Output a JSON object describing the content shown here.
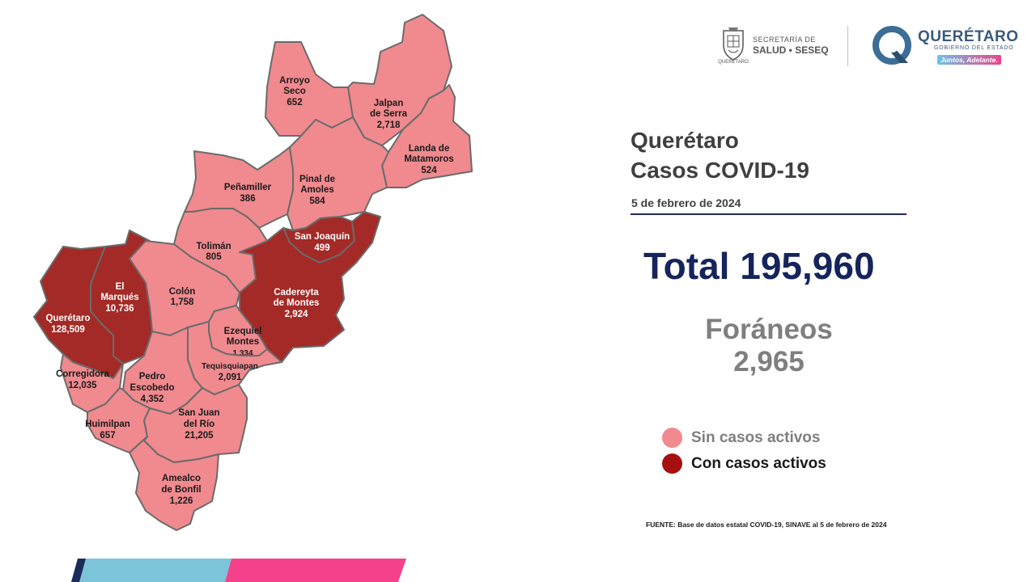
{
  "map": {
    "municipalities": [
      {
        "id": "arroyo-seco",
        "name_lines": [
          "Arroyo",
          "Seco"
        ],
        "cases": "652",
        "status": "sin_casos_activos"
      },
      {
        "id": "jalpan-de-serra",
        "name_lines": [
          "Jalpan",
          "de Serra"
        ],
        "cases": "2,718",
        "status": "sin_casos_activos"
      },
      {
        "id": "landa-de-matamoros",
        "name_lines": [
          "Landa de",
          "Matamoros"
        ],
        "cases": "524",
        "status": "sin_casos_activos"
      },
      {
        "id": "pinal-de-amoles",
        "name_lines": [
          "Pinal de",
          "Amoles"
        ],
        "cases": "584",
        "status": "sin_casos_activos"
      },
      {
        "id": "penamiller",
        "name_lines": [
          "Peñamiller"
        ],
        "cases": "386",
        "status": "sin_casos_activos"
      },
      {
        "id": "san-joaquin",
        "name_lines": [
          "San Joaquín"
        ],
        "cases": "499",
        "status": "con_casos_activos"
      },
      {
        "id": "toliman",
        "name_lines": [
          "Tolimán"
        ],
        "cases": "805",
        "status": "sin_casos_activos"
      },
      {
        "id": "cadereyta-de-montes",
        "name_lines": [
          "Cadereyta",
          "de Montes"
        ],
        "cases": "2,924",
        "status": "con_casos_activos"
      },
      {
        "id": "el-marques",
        "name_lines": [
          "El",
          "Marqués"
        ],
        "cases": "10,736",
        "status": "con_casos_activos"
      },
      {
        "id": "queretaro",
        "name_lines": [
          "Querétaro"
        ],
        "cases": "128,509",
        "status": "con_casos_activos"
      },
      {
        "id": "colon",
        "name_lines": [
          "Colón"
        ],
        "cases": "1,758",
        "status": "sin_casos_activos"
      },
      {
        "id": "ezequiel-montes",
        "name_lines": [
          "Ezequiel",
          "Montes"
        ],
        "cases": "1,334",
        "status": "sin_casos_activos"
      },
      {
        "id": "corregidora",
        "name_lines": [
          "Corregidora"
        ],
        "cases": "12,035",
        "status": "sin_casos_activos"
      },
      {
        "id": "pedro-escobedo",
        "name_lines": [
          "Pedro",
          "Escobedo"
        ],
        "cases": "4,352",
        "status": "sin_casos_activos"
      },
      {
        "id": "tequisquiapan",
        "name_lines": [
          "Tequisquiapan"
        ],
        "cases": "2,091",
        "status": "sin_casos_activos"
      },
      {
        "id": "huimilpan",
        "name_lines": [
          "Huimilpan"
        ],
        "cases": "657",
        "status": "sin_casos_activos"
      },
      {
        "id": "san-juan-del-rio",
        "name_lines": [
          "San Juan",
          "del Río"
        ],
        "cases": "21,205",
        "status": "sin_casos_activos"
      },
      {
        "id": "amealco-de-bonfil",
        "name_lines": [
          "Amealco",
          "de Bonfil"
        ],
        "cases": "1,226",
        "status": "sin_casos_activos"
      }
    ]
  },
  "header": {
    "seseq_line1": "SECRETARÍA DE",
    "seseq_line2": "SALUD • SESEQ",
    "seal_caption": "QUERÉTARO",
    "qro_name": "QUERÉTARO",
    "qro_sub": "GOBIERNO DEL ESTADO",
    "qro_tag": "Juntos, Adelante."
  },
  "title_lines": [
    "Querétaro",
    "Casos COVID-19"
  ],
  "date": "5 de febrero de 2024",
  "total_label": "Total 195,960",
  "foraneos_label": "Foráneos",
  "foraneos_value": "2,965",
  "legend": [
    {
      "label": "Sin casos activos",
      "color": "#f08a8f",
      "text_color": "#7f7f7f"
    },
    {
      "label": "Con casos activos",
      "color": "#a50f0f",
      "text_color": "#1a1a1a"
    }
  ],
  "source_note": "FUENTE: Base de datos estatal  COVID-19,  SINAVE  al 5 de febrero de 2024",
  "colors": {
    "sin_casos_activos": "#f08a8f",
    "con_casos_activos": "#a32a26",
    "title": "#3f3f3f",
    "total": "#16245c",
    "foraneos": "#7f7f7f",
    "bar_blue": "#7cc4da",
    "bar_pink": "#f5418c",
    "bar_navy": "#1c2c5a"
  }
}
